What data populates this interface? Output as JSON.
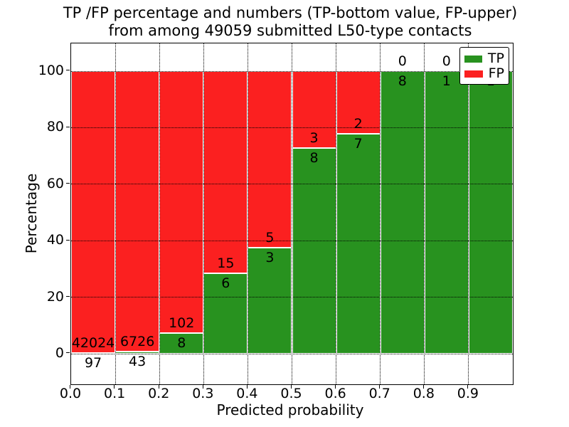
{
  "title": {
    "line1": "TP /FP percentage and numbers (TP-bottom value, FP-upper)",
    "line2": "from among 49059 submitted L50-type contacts"
  },
  "axes": {
    "x_label": "Predicted probability",
    "y_label": "Percentage",
    "x_tick_labels": [
      "0.0",
      "0.1",
      "0.2",
      "0.3",
      "0.4",
      "0.5",
      "0.6",
      "0.7",
      "0.8",
      "0.9"
    ],
    "y_tick_labels": [
      "0",
      "20",
      "40",
      "60",
      "80",
      "100"
    ],
    "y_tick_values": [
      0,
      20,
      40,
      60,
      80,
      100
    ]
  },
  "legend": [
    {
      "label": "TP",
      "color": "#28921f"
    },
    {
      "label": "FP",
      "color": "#fb2020"
    }
  ],
  "colors": {
    "tp": "#28921f",
    "fp": "#fb2020",
    "grid": "#000000",
    "background": "#ffffff"
  },
  "chart_data": {
    "type": "bar",
    "subtype": "stacked-percentage-histogram",
    "title": "TP /FP percentage and numbers (TP-bottom value, FP-upper) from among 49059 submitted L50-type contacts",
    "xlabel": "Predicted probability",
    "ylabel": "Percentage",
    "bin_starts": [
      0.0,
      0.1,
      0.2,
      0.3,
      0.4,
      0.5,
      0.6,
      0.7,
      0.8,
      0.9
    ],
    "bin_width": 0.1,
    "series": [
      {
        "name": "TP",
        "counts": [
          97,
          43,
          8,
          6,
          3,
          8,
          7,
          8,
          1,
          1
        ]
      },
      {
        "name": "FP",
        "counts": [
          42024,
          6726,
          102,
          15,
          5,
          3,
          2,
          0,
          0,
          0
        ]
      }
    ],
    "tp_percent": [
      0.23,
      0.64,
      7.27,
      28.57,
      37.5,
      72.73,
      77.78,
      100,
      100,
      100
    ],
    "annotation_note": "FP count printed above TP/FP boundary, TP count below",
    "xlim": [
      0.0,
      1.0
    ],
    "ylim": [
      -10.6,
      110.1
    ],
    "grid": "dotted",
    "legend_position": "upper right"
  }
}
